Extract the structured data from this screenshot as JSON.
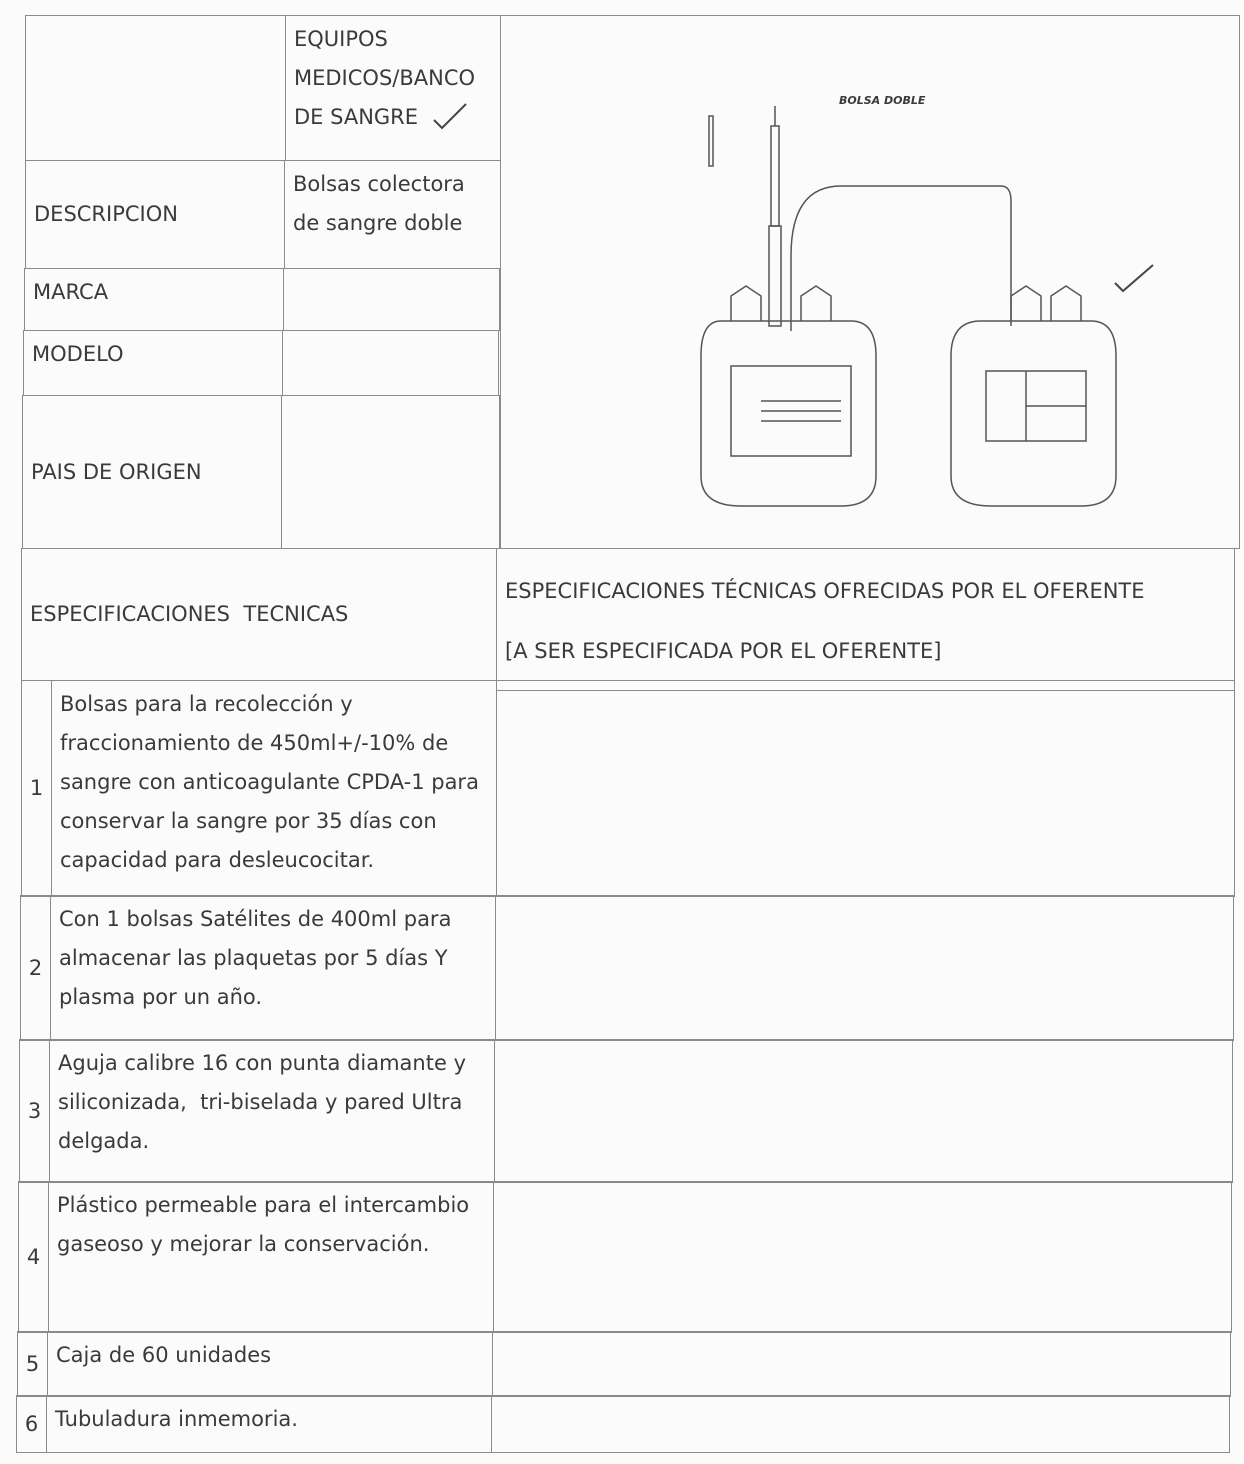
{
  "header": {
    "category": "EQUIPOS MEDICOS/BANCO DE SANGRE",
    "image_caption": "BOLSA DOBLE"
  },
  "fields": [
    {
      "label": "DESCRIPCION",
      "value": "Bolsas colectora de sangre doble"
    },
    {
      "label": "MARCA"
    },
    {
      "label": "MODELO"
    },
    {
      "label": "PAIS DE ORIGEN"
    }
  ],
  "specs_header": {
    "left": "ESPECIFICACIONES  TECNICAS",
    "right_title": "ESPECIFICACIONES TÉCNICAS OFRECIDAS POR EL OFERENTE",
    "right_note": "[A SER ESPECIFICADA POR EL OFERENTE]"
  },
  "items": [
    {
      "number": 1,
      "text": "Bolsas para la recolección y fraccionamiento de 450ml+/-10% de sangre con anticoagulante CPDA-1 para conservar la sangre por 35 días con capacidad para desleucocitar."
    },
    {
      "number": 2,
      "text": "Con 1 bolsas Satélites de 400ml para almacenar las plaquetas por 5 días Y plasma por un año."
    },
    {
      "number": 3,
      "text": "Aguja calibre 16 con punta diamante y siliconizada,  tri-biselada y pared Ultra delgada."
    },
    {
      "number": 4,
      "text": "Plástico permeable para el intercambio gaseoso y mejorar la conservación."
    },
    {
      "number": 5,
      "text": "Caja de 60 unidades"
    },
    {
      "number": 6,
      "text": "Tubuladura inmemoria."
    }
  ]
}
